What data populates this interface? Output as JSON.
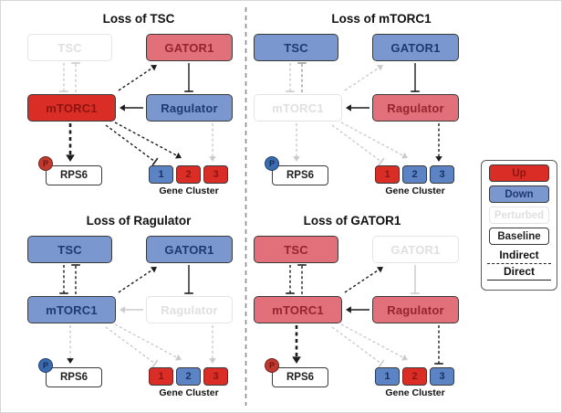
{
  "colors": {
    "up_strong": "#d92d26",
    "up_strong_text": "#8c1511",
    "up": "#e2707a",
    "up_text": "#96242e",
    "down": "#7b97cf",
    "down_text": "#1f3a70",
    "cluster_down": "#5c84c4",
    "cluster_down_text": "#163162",
    "perturbed_border": "#e4e4e4",
    "perturbed_text": "#e0e0e0",
    "badge_up": "#c03a2f",
    "badge_up_text": "#701310",
    "badge_down": "#3a6bb0",
    "badge_down_text": "#122c52",
    "edge_dark": "#1c1c1c",
    "edge_mid": "#999999",
    "edge_light": "#cbcbcb",
    "divider": "#8a8a8a"
  },
  "panels": [
    {
      "title": "Loss of TSC",
      "nodes": [
        {
          "id": "tsc",
          "label": "TSC",
          "state": "perturbed"
        },
        {
          "id": "gator1",
          "label": "GATOR1",
          "state": "up"
        },
        {
          "id": "mtorc1",
          "label": "mTORC1",
          "state": "up-strong"
        },
        {
          "id": "ragulator",
          "label": "Ragulator",
          "state": "down"
        }
      ],
      "rps6": {
        "label": "RPS6",
        "phospho_label": "P",
        "phospho_state": "up"
      },
      "gene_cluster": {
        "label": "Gene Cluster",
        "items": [
          {
            "label": "1",
            "state": "down"
          },
          {
            "label": "2",
            "state": "up"
          },
          {
            "label": "3",
            "state": "up"
          }
        ]
      },
      "edges": [
        {
          "from": "tsc",
          "to": "mtorc1",
          "type": "inhibit",
          "line": "dashed",
          "tone": "light"
        },
        {
          "from": "mtorc1",
          "to": "tsc",
          "type": "inhibit",
          "line": "dashed",
          "tone": "light"
        },
        {
          "from": "mtorc1",
          "to": "gator1",
          "type": "activate",
          "line": "dashed",
          "tone": "dark"
        },
        {
          "from": "gator1",
          "to": "ragulator",
          "type": "inhibit",
          "line": "solid",
          "tone": "dark"
        },
        {
          "from": "ragulator",
          "to": "mtorc1",
          "type": "activate",
          "line": "solid",
          "tone": "dark"
        },
        {
          "from": "mtorc1",
          "to": "rps6",
          "type": "activate",
          "line": "dashed",
          "tone": "dark",
          "weight": "thick"
        },
        {
          "from": "mtorc1",
          "to": "cluster1",
          "type": "inhibit",
          "line": "dashed",
          "tone": "dark"
        },
        {
          "from": "mtorc1",
          "to": "cluster2",
          "type": "activate",
          "line": "dashed",
          "tone": "dark"
        },
        {
          "from": "ragulator",
          "to": "cluster3",
          "type": "activate",
          "line": "dashed",
          "tone": "light"
        }
      ]
    },
    {
      "title": "Loss of mTORC1",
      "nodes": [
        {
          "id": "tsc",
          "label": "TSC",
          "state": "down"
        },
        {
          "id": "gator1",
          "label": "GATOR1",
          "state": "down"
        },
        {
          "id": "mtorc1",
          "label": "mTORC1",
          "state": "perturbed"
        },
        {
          "id": "ragulator",
          "label": "Ragulator",
          "state": "up"
        }
      ],
      "rps6": {
        "label": "RPS6",
        "phospho_label": "P",
        "phospho_state": "down"
      },
      "gene_cluster": {
        "label": "Gene Cluster",
        "items": [
          {
            "label": "1",
            "state": "up"
          },
          {
            "label": "2",
            "state": "down"
          },
          {
            "label": "3",
            "state": "down"
          }
        ]
      },
      "edges": [
        {
          "from": "tsc",
          "to": "mtorc1",
          "type": "inhibit",
          "line": "dashed",
          "tone": "light"
        },
        {
          "from": "mtorc1",
          "to": "tsc",
          "type": "inhibit",
          "line": "dashed",
          "tone": "mid"
        },
        {
          "from": "mtorc1",
          "to": "gator1",
          "type": "activate",
          "line": "dashed",
          "tone": "light"
        },
        {
          "from": "gator1",
          "to": "ragulator",
          "type": "inhibit",
          "line": "solid",
          "tone": "dark"
        },
        {
          "from": "ragulator",
          "to": "mtorc1",
          "type": "activate",
          "line": "solid",
          "tone": "dark"
        },
        {
          "from": "mtorc1",
          "to": "rps6",
          "type": "activate",
          "line": "dashed",
          "tone": "light"
        },
        {
          "from": "mtorc1",
          "to": "cluster1",
          "type": "inhibit",
          "line": "dashed",
          "tone": "light"
        },
        {
          "from": "mtorc1",
          "to": "cluster2",
          "type": "activate",
          "line": "dashed",
          "tone": "light"
        },
        {
          "from": "ragulator",
          "to": "cluster3",
          "type": "activate",
          "line": "dashed",
          "tone": "dark"
        }
      ]
    },
    {
      "title": "Loss of Ragulator",
      "nodes": [
        {
          "id": "tsc",
          "label": "TSC",
          "state": "down"
        },
        {
          "id": "gator1",
          "label": "GATOR1",
          "state": "down"
        },
        {
          "id": "mtorc1",
          "label": "mTORC1",
          "state": "down"
        },
        {
          "id": "ragulator",
          "label": "Ragulator",
          "state": "perturbed"
        }
      ],
      "rps6": {
        "label": "RPS6",
        "phospho_label": "P",
        "phospho_state": "down"
      },
      "gene_cluster": {
        "label": "Gene Cluster",
        "items": [
          {
            "label": "1",
            "state": "up"
          },
          {
            "label": "2",
            "state": "down"
          },
          {
            "label": "3",
            "state": "up"
          }
        ]
      },
      "edges": [
        {
          "from": "tsc",
          "to": "mtorc1",
          "type": "inhibit",
          "line": "dashed",
          "tone": "dark"
        },
        {
          "from": "mtorc1",
          "to": "tsc",
          "type": "inhibit",
          "line": "dashed",
          "tone": "dark"
        },
        {
          "from": "mtorc1",
          "to": "gator1",
          "type": "activate",
          "line": "dashed",
          "tone": "dark"
        },
        {
          "from": "gator1",
          "to": "ragulator",
          "type": "inhibit",
          "line": "solid",
          "tone": "dark"
        },
        {
          "from": "ragulator",
          "to": "mtorc1",
          "type": "activate",
          "line": "solid",
          "tone": "light"
        },
        {
          "from": "mtorc1",
          "to": "rps6",
          "type": "activate",
          "line": "dashed",
          "tone": "light",
          "head_tone": "dark"
        },
        {
          "from": "mtorc1",
          "to": "cluster1",
          "type": "inhibit",
          "line": "dashed",
          "tone": "light"
        },
        {
          "from": "mtorc1",
          "to": "cluster2",
          "type": "activate",
          "line": "dashed",
          "tone": "light"
        },
        {
          "from": "ragulator",
          "to": "cluster3",
          "type": "activate",
          "line": "dashed",
          "tone": "light"
        }
      ]
    },
    {
      "title": "Loss of GATOR1",
      "nodes": [
        {
          "id": "tsc",
          "label": "TSC",
          "state": "up"
        },
        {
          "id": "gator1",
          "label": "GATOR1",
          "state": "perturbed"
        },
        {
          "id": "mtorc1",
          "label": "mTORC1",
          "state": "up"
        },
        {
          "id": "ragulator",
          "label": "Ragulator",
          "state": "up"
        }
      ],
      "rps6": {
        "label": "RPS6",
        "phospho_label": "P",
        "phospho_state": "up"
      },
      "gene_cluster": {
        "label": "Gene Cluster",
        "items": [
          {
            "label": "1",
            "state": "down"
          },
          {
            "label": "2",
            "state": "up"
          },
          {
            "label": "3",
            "state": "down"
          }
        ]
      },
      "edges": [
        {
          "from": "tsc",
          "to": "mtorc1",
          "type": "inhibit",
          "line": "dashed",
          "tone": "dark"
        },
        {
          "from": "mtorc1",
          "to": "tsc",
          "type": "inhibit",
          "line": "dashed",
          "tone": "dark"
        },
        {
          "from": "mtorc1",
          "to": "gator1",
          "type": "activate",
          "line": "dashed",
          "tone": "dark"
        },
        {
          "from": "gator1",
          "to": "ragulator",
          "type": "inhibit",
          "line": "solid",
          "tone": "light"
        },
        {
          "from": "ragulator",
          "to": "mtorc1",
          "type": "activate",
          "line": "solid",
          "tone": "dark"
        },
        {
          "from": "mtorc1",
          "to": "rps6",
          "type": "activate",
          "line": "dashed",
          "tone": "dark",
          "weight": "thick"
        },
        {
          "from": "mtorc1",
          "to": "cluster1",
          "type": "inhibit",
          "line": "dashed",
          "tone": "light"
        },
        {
          "from": "mtorc1",
          "to": "cluster2",
          "type": "activate",
          "line": "dashed",
          "tone": "light"
        },
        {
          "from": "ragulator",
          "to": "cluster3",
          "type": "inhibit",
          "line": "dashed",
          "tone": "dark"
        }
      ]
    }
  ],
  "legend": {
    "items": [
      {
        "label": "Up",
        "kind": "chip",
        "state": "up-strong"
      },
      {
        "label": "Down",
        "kind": "chip",
        "state": "down"
      },
      {
        "label": "Perturbed",
        "kind": "chip",
        "state": "perturbed"
      },
      {
        "label": "Baseline",
        "kind": "chip",
        "state": "baseline"
      },
      {
        "label": "Indirect",
        "kind": "line",
        "line": "dashed"
      },
      {
        "label": "Direct",
        "kind": "line",
        "line": "solid"
      }
    ]
  }
}
